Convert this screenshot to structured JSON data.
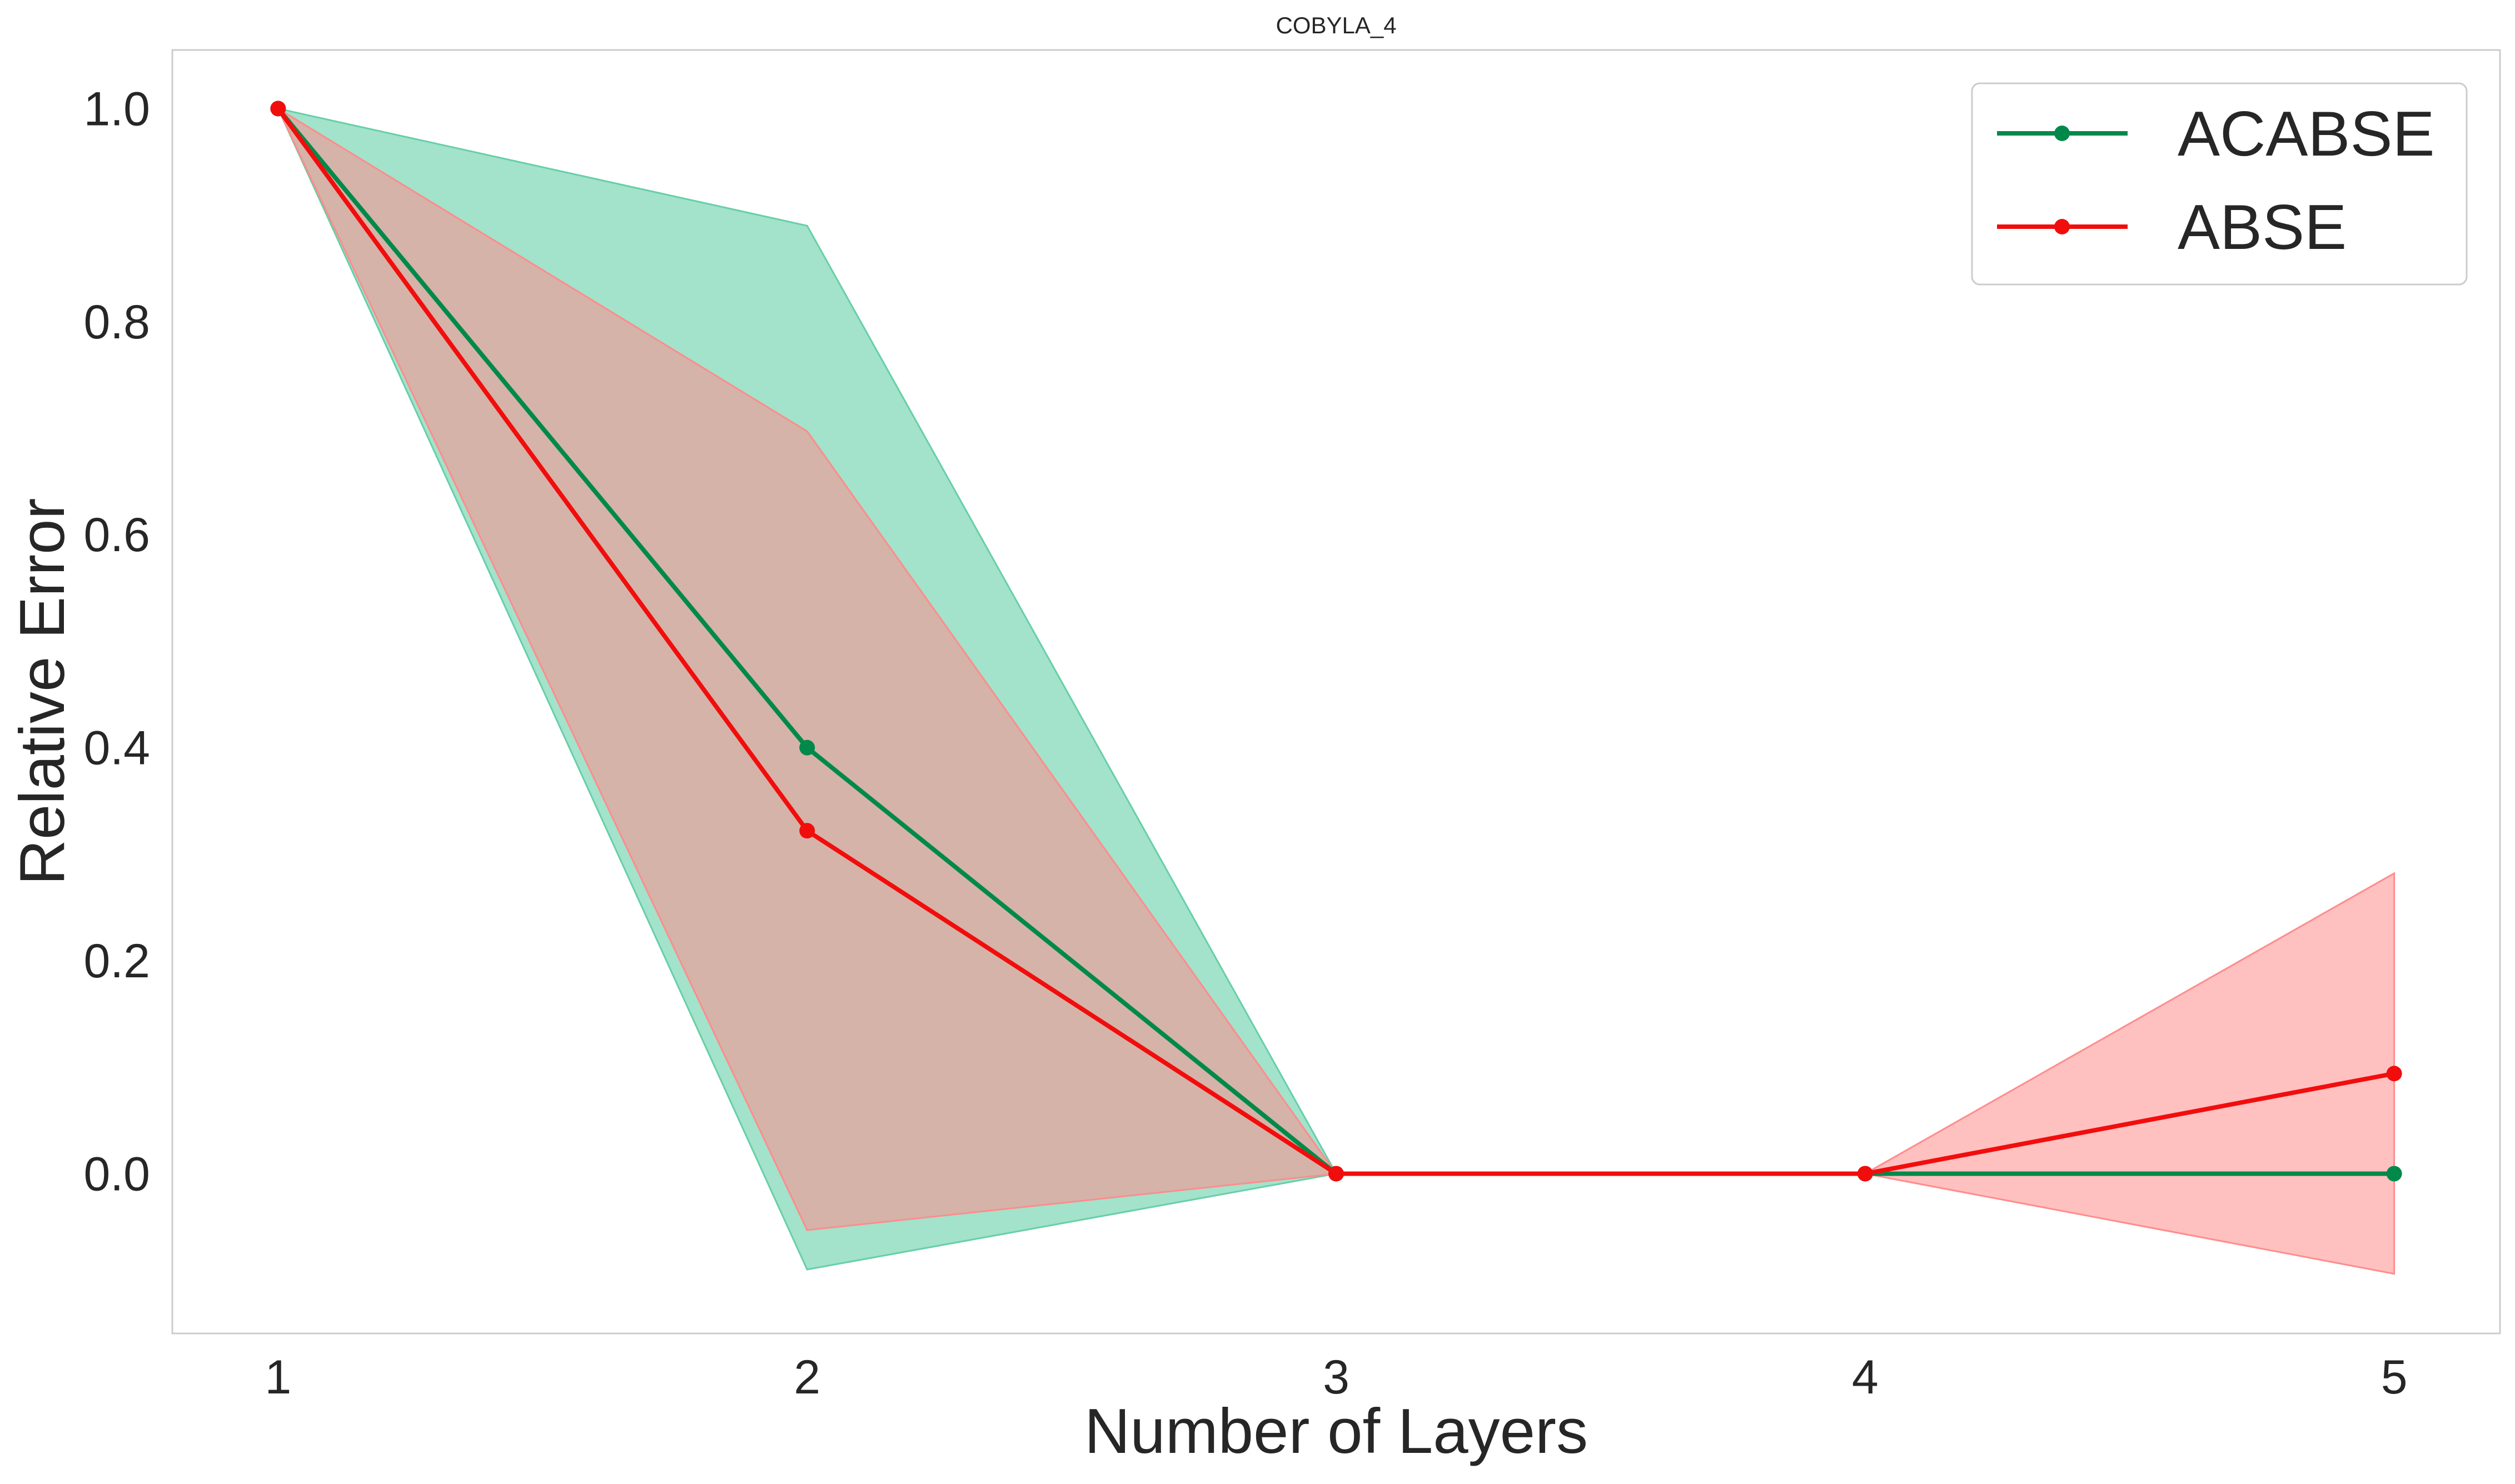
{
  "chart_data": {
    "type": "line",
    "title": "COBYLA_4",
    "xlabel": "Number of Layers",
    "ylabel": "Relative Error",
    "x": [
      1,
      2,
      3,
      4,
      5
    ],
    "xticks": [
      "1",
      "2",
      "3",
      "4",
      "5"
    ],
    "yticks": [
      "0.0",
      "0.2",
      "0.4",
      "0.6",
      "0.8",
      "1.0"
    ],
    "ytick_values": [
      0.0,
      0.2,
      0.4,
      0.6,
      0.8,
      1.0
    ],
    "xlim": [
      0.8,
      5.2
    ],
    "ylim": [
      -0.15,
      1.055
    ],
    "grid": false,
    "legend_position": "top-right",
    "series": [
      {
        "name": "ACABSE",
        "color": "#00894a",
        "band_color": "#66cfa8",
        "values": [
          1.0,
          0.4,
          0.0,
          0.0,
          0.0
        ],
        "lower": [
          1.0,
          -0.09,
          0.0,
          0.0,
          0.0
        ],
        "upper": [
          1.0,
          0.89,
          0.0,
          0.0,
          0.0
        ]
      },
      {
        "name": "ABSE",
        "color": "#f20d0d",
        "band_color": "#ff8c8c",
        "values": [
          1.0,
          0.322,
          0.0,
          0.0,
          0.094
        ],
        "lower": [
          1.0,
          -0.053,
          0.0,
          0.0,
          -0.094
        ],
        "upper": [
          1.0,
          0.697,
          0.0,
          0.0,
          0.282
        ]
      }
    ]
  }
}
